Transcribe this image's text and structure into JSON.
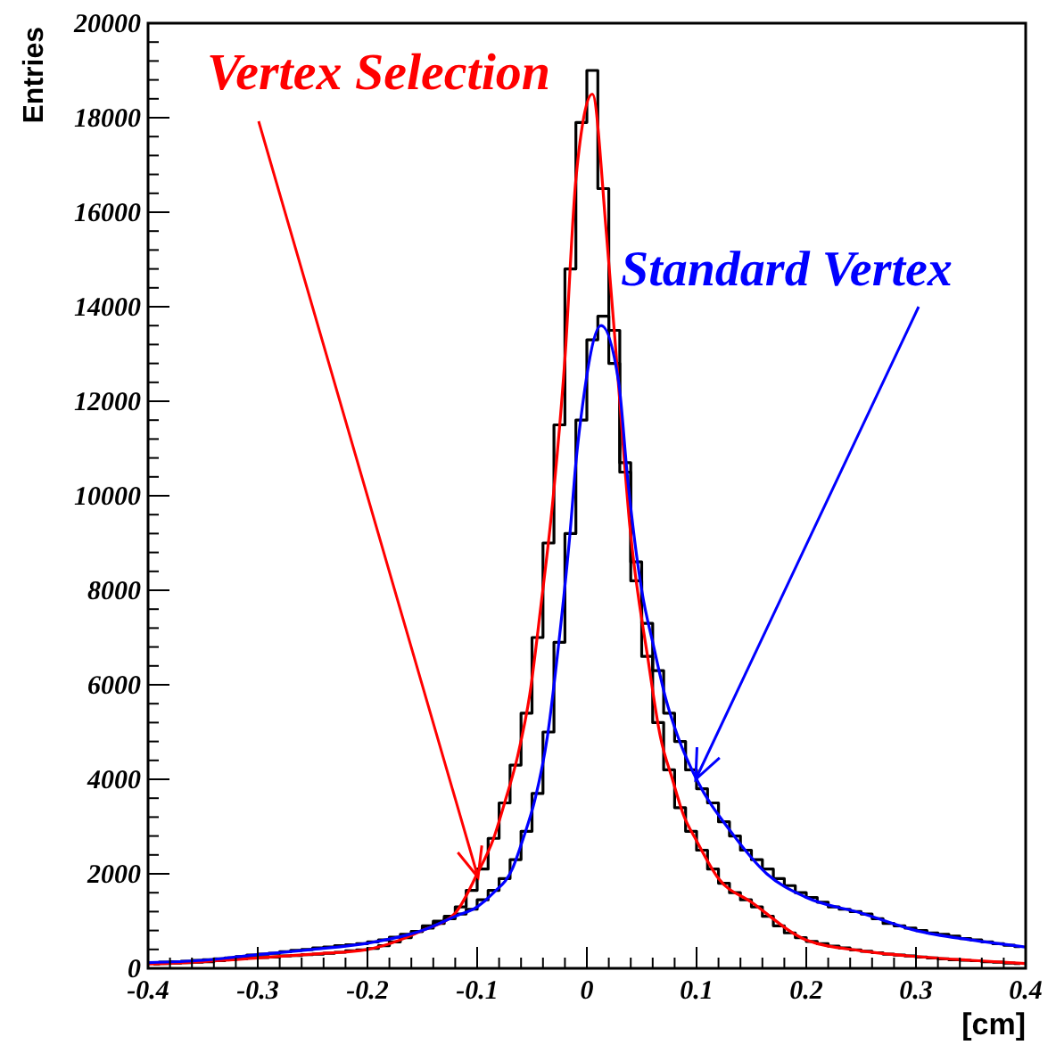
{
  "chart_data": {
    "type": "step",
    "xlabel": "[cm]",
    "ylabel": "Entries",
    "xlim": [
      -0.4,
      0.4
    ],
    "xticks": [
      -0.4,
      -0.3,
      -0.2,
      -0.1,
      0,
      0.1,
      0.2,
      0.3,
      0.4
    ],
    "ylim": [
      0,
      20000
    ],
    "yticks": [
      0,
      2000,
      4000,
      6000,
      8000,
      10000,
      12000,
      14000,
      16000,
      18000,
      20000
    ],
    "grid": false,
    "legend": "top right",
    "x": [
      -0.395,
      -0.385,
      -0.375,
      -0.365,
      -0.355,
      -0.345,
      -0.335,
      -0.325,
      -0.315,
      -0.305,
      -0.295,
      -0.285,
      -0.275,
      -0.265,
      -0.255,
      -0.245,
      -0.235,
      -0.225,
      -0.215,
      -0.205,
      -0.195,
      -0.185,
      -0.175,
      -0.165,
      -0.155,
      -0.145,
      -0.135,
      -0.125,
      -0.115,
      -0.105,
      -0.095,
      -0.085,
      -0.075,
      -0.065,
      -0.055,
      -0.045,
      -0.035,
      -0.025,
      -0.015,
      -0.005,
      0.005,
      0.015,
      0.025,
      0.035,
      0.045,
      0.055,
      0.065,
      0.075,
      0.085,
      0.095,
      0.105,
      0.115,
      0.125,
      0.135,
      0.145,
      0.155,
      0.165,
      0.175,
      0.185,
      0.195,
      0.205,
      0.215,
      0.225,
      0.235,
      0.245,
      0.255,
      0.265,
      0.275,
      0.285,
      0.295,
      0.305,
      0.315,
      0.325,
      0.335,
      0.345,
      0.355,
      0.365,
      0.375,
      0.385,
      0.395
    ],
    "series": [
      {
        "color": "#000000",
        "values": [
          90,
          100,
          110,
          120,
          130,
          140,
          160,
          180,
          200,
          220,
          230,
          240,
          260,
          270,
          290,
          300,
          320,
          340,
          370,
          390,
          420,
          480,
          560,
          650,
          780,
          900,
          1000,
          1100,
          1300,
          1650,
          2100,
          2750,
          3500,
          4300,
          5400,
          7000,
          9000,
          11500,
          14800,
          17900,
          19000,
          16500,
          13500,
          10500,
          8200,
          6600,
          5200,
          4200,
          3400,
          2900,
          2500,
          2100,
          1800,
          1600,
          1450,
          1300,
          1100,
          900,
          750,
          650,
          570,
          520,
          470,
          430,
          390,
          360,
          330,
          300,
          280,
          260,
          240,
          220,
          200,
          180,
          170,
          160,
          140,
          130,
          110,
          100
        ]
      },
      {
        "color": "#000000",
        "values": [
          120,
          130,
          140,
          150,
          170,
          180,
          200,
          220,
          250,
          280,
          300,
          320,
          350,
          380,
          400,
          430,
          450,
          480,
          500,
          520,
          560,
          600,
          660,
          720,
          780,
          850,
          950,
          1050,
          1150,
          1250,
          1450,
          1650,
          1900,
          2300,
          2900,
          3700,
          5000,
          6900,
          9200,
          11600,
          13300,
          13800,
          12800,
          10700,
          8600,
          7300,
          6300,
          5400,
          4800,
          4200,
          3800,
          3500,
          3100,
          2800,
          2500,
          2300,
          2100,
          1900,
          1750,
          1600,
          1500,
          1400,
          1300,
          1250,
          1200,
          1150,
          1050,
          950,
          900,
          850,
          800,
          750,
          720,
          680,
          630,
          600,
          560,
          520,
          490,
          460
        ]
      },
      {
        "type": "line",
        "name": "Vertex Selection",
        "color": "#ff0000",
        "x": [
          -0.4,
          -0.35,
          -0.3,
          -0.25,
          -0.2,
          -0.15,
          -0.12,
          -0.1,
          -0.085,
          -0.075,
          -0.063,
          -0.052,
          -0.042,
          -0.031,
          -0.02,
          -0.01,
          0.005,
          0.018,
          0.029,
          0.039,
          0.056,
          0.067,
          0.078,
          0.088,
          0.1,
          0.12,
          0.15,
          0.2,
          0.25,
          0.3,
          0.35,
          0.4
        ],
        "values": [
          90,
          140,
          220,
          300,
          400,
          800,
          1170,
          2000,
          2750,
          3500,
          4500,
          5800,
          7650,
          9900,
          12900,
          16700,
          18500,
          15500,
          12300,
          9400,
          6500,
          4900,
          4000,
          3250,
          2700,
          1900,
          1400,
          600,
          370,
          250,
          170,
          100
        ]
      },
      {
        "type": "line",
        "name": "Standard Vertex",
        "color": "#0000ff",
        "x": [
          -0.4,
          -0.35,
          -0.3,
          -0.25,
          -0.2,
          -0.15,
          -0.12,
          -0.1,
          -0.085,
          -0.068,
          -0.058,
          -0.047,
          -0.036,
          -0.026,
          -0.015,
          -0.01,
          -0.004,
          0.013,
          0.029,
          0.037,
          0.05,
          0.061,
          0.072,
          0.083,
          0.1,
          0.132,
          0.164,
          0.2,
          0.25,
          0.3,
          0.35,
          0.4
        ],
        "values": [
          120,
          170,
          290,
          400,
          530,
          800,
          1100,
          1300,
          1600,
          2100,
          2750,
          3600,
          4900,
          6800,
          9300,
          10700,
          11900,
          13600,
          12400,
          10400,
          8000,
          6800,
          5700,
          4900,
          4000,
          2870,
          2000,
          1500,
          1170,
          800,
          600,
          450
        ]
      }
    ]
  }
}
